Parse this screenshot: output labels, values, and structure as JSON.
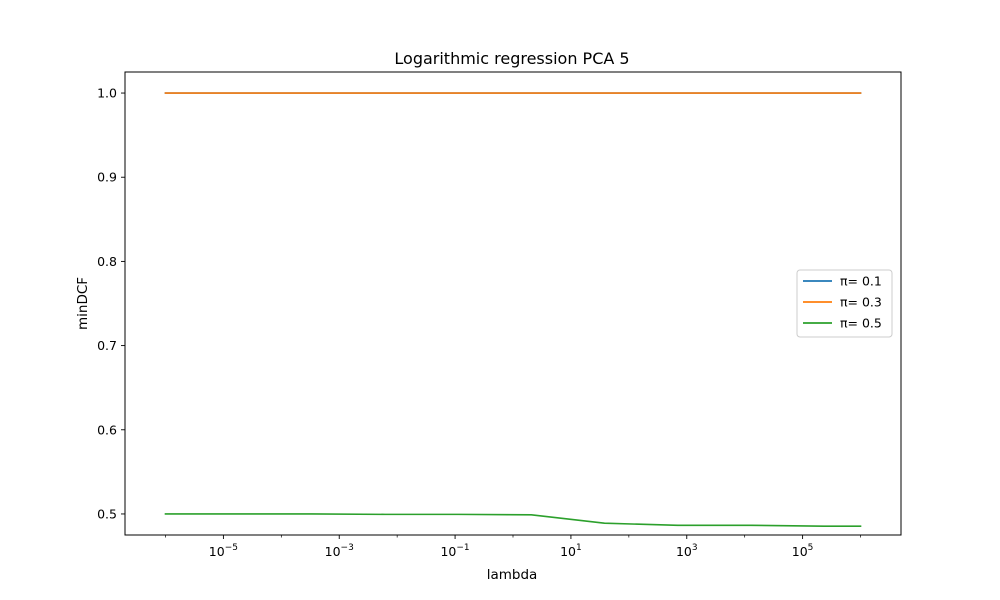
{
  "chart_data": {
    "type": "line",
    "title": "Logarithmic regression PCA 5",
    "xlabel": "lambda",
    "ylabel": "minDCF",
    "xscale": "log",
    "xlim": [
      2e-07,
      5000000
    ],
    "ylim": [
      0.475,
      1.025
    ],
    "xticks": [
      {
        "value": 1e-05,
        "base": "10",
        "exp": "−5"
      },
      {
        "value": 0.001,
        "base": "10",
        "exp": "−3"
      },
      {
        "value": 0.1,
        "base": "10",
        "exp": "−1"
      },
      {
        "value": 10,
        "base": "10",
        "exp": "1"
      },
      {
        "value": 1000,
        "base": "10",
        "exp": "3"
      },
      {
        "value": 100000,
        "base": "10",
        "exp": "5"
      }
    ],
    "yticks": [
      {
        "value": 0.5,
        "label": "0.5"
      },
      {
        "value": 0.6,
        "label": "0.6"
      },
      {
        "value": 0.7,
        "label": "0.7"
      },
      {
        "value": 0.8,
        "label": "0.8"
      },
      {
        "value": 0.9,
        "label": "0.9"
      },
      {
        "value": 1.0,
        "label": "1.0"
      }
    ],
    "x": [
      1e-06,
      1.83e-05,
      0.000336,
      0.00616,
      0.113,
      2.07,
      37.9,
      695,
      12700,
      234000,
      1000000
    ],
    "series": [
      {
        "name": "π= 0.1",
        "color": "#1f77b4",
        "values": [
          1.0,
          1.0,
          1.0,
          1.0,
          1.0,
          1.0,
          1.0,
          1.0,
          1.0,
          1.0,
          1.0
        ]
      },
      {
        "name": "π= 0.3",
        "color": "#ff7f0e",
        "values": [
          1.0,
          1.0,
          1.0,
          1.0,
          1.0,
          1.0,
          1.0,
          1.0,
          1.0,
          1.0,
          1.0
        ]
      },
      {
        "name": "π= 0.5",
        "color": "#2ca02c",
        "values": [
          0.5,
          0.5,
          0.5,
          0.4995,
          0.4995,
          0.499,
          0.489,
          0.4865,
          0.4865,
          0.4855,
          0.4855
        ]
      }
    ],
    "legend_position": "center-right",
    "grid": false
  }
}
